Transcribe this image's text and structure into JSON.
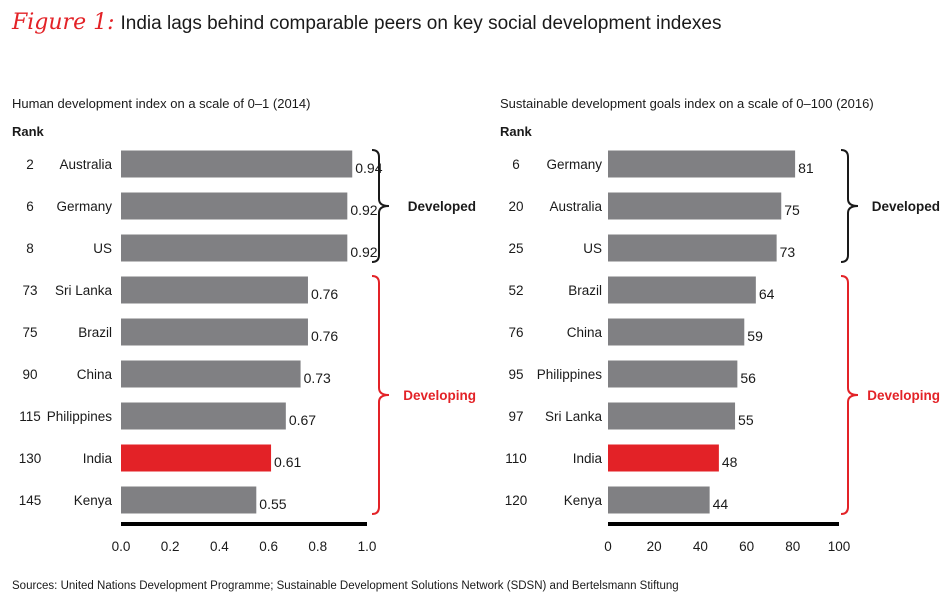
{
  "figure": {
    "label": "Figure 1:",
    "title": "India lags behind comparable peers on key social development indexes"
  },
  "sources": "Sources: United Nations Development Programme; Sustainable Development Solutions Network (SDSN) and Bertelsmann Stiftung",
  "colors": {
    "bar": "#808083",
    "highlight": "#e32227",
    "developed_brace": "#1a1a1a",
    "developing_brace": "#e32227",
    "axis": "#000000"
  },
  "chart_data": [
    {
      "type": "bar",
      "orientation": "horizontal",
      "title": "Human development index on a scale of 0–1 (2014)",
      "rank_header": "Rank",
      "categories": [
        "Australia",
        "Germany",
        "US",
        "Sri Lanka",
        "Brazil",
        "China",
        "Philippines",
        "India",
        "Kenya"
      ],
      "ranks": [
        "2",
        "6",
        "8",
        "73",
        "75",
        "90",
        "115",
        "130",
        "145"
      ],
      "values": [
        0.94,
        0.92,
        0.92,
        0.76,
        0.76,
        0.73,
        0.67,
        0.61,
        0.55
      ],
      "value_labels": [
        "0.94",
        "0.92",
        "0.92",
        "0.76",
        "0.76",
        "0.73",
        "0.67",
        "0.61",
        "0.55"
      ],
      "highlight": "India",
      "xlim": [
        0,
        1.0
      ],
      "ticks": [
        0,
        0.2,
        0.4,
        0.6,
        0.8,
        1.0
      ],
      "tick_labels": [
        "0.0",
        "0.2",
        "0.4",
        "0.6",
        "0.8",
        "1.0"
      ],
      "groups": [
        {
          "label": "Developed",
          "start": 0,
          "end": 2
        },
        {
          "label": "Developing",
          "start": 3,
          "end": 8
        }
      ]
    },
    {
      "type": "bar",
      "orientation": "horizontal",
      "title": "Sustainable development goals index on a scale of 0–100 (2016)",
      "rank_header": "Rank",
      "categories": [
        "Germany",
        "Australia",
        "US",
        "Brazil",
        "China",
        "Philippines",
        "Sri Lanka",
        "India",
        "Kenya"
      ],
      "ranks": [
        "6",
        "20",
        "25",
        "52",
        "76",
        "95",
        "97",
        "110",
        "120"
      ],
      "values": [
        81,
        75,
        73,
        64,
        59,
        56,
        55,
        48,
        44
      ],
      "value_labels": [
        "81",
        "75",
        "73",
        "64",
        "59",
        "56",
        "55",
        "48",
        "44"
      ],
      "highlight": "India",
      "xlim": [
        0,
        100
      ],
      "ticks": [
        0,
        20,
        40,
        60,
        80,
        100
      ],
      "tick_labels": [
        "0",
        "20",
        "40",
        "60",
        "80",
        "100"
      ],
      "groups": [
        {
          "label": "Developed",
          "start": 0,
          "end": 2
        },
        {
          "label": "Developing",
          "start": 3,
          "end": 8
        }
      ]
    }
  ]
}
